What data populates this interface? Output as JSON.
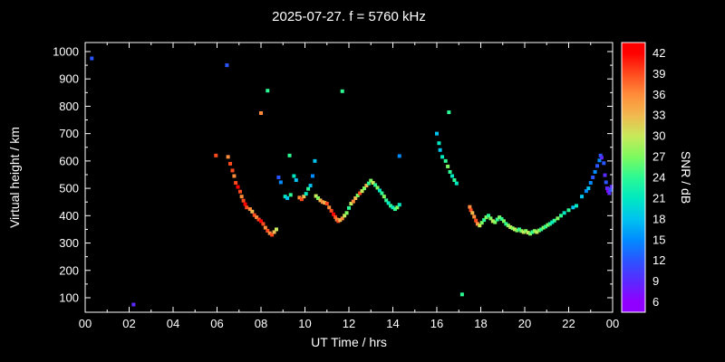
{
  "chart_data": {
    "type": "scatter",
    "title": "2025-07-27. f = 5760 kHz",
    "xlabel": "UT Time / hrs",
    "ylabel": "Virtual height / km",
    "colorbar_label": "SNR / dB",
    "x_range": [
      0,
      24
    ],
    "y_range": [
      47,
      1033
    ],
    "x_tick_values": [
      0,
      2,
      4,
      6,
      8,
      10,
      12,
      14,
      16,
      18,
      20,
      22,
      24
    ],
    "x_tick_labels": [
      "00",
      "02",
      "04",
      "06",
      "08",
      "10",
      "12",
      "14",
      "16",
      "18",
      "20",
      "22",
      "00"
    ],
    "y_tick_values": [
      100,
      200,
      300,
      400,
      500,
      600,
      700,
      800,
      900,
      1000
    ],
    "y_tick_labels": [
      "100",
      "200",
      "300",
      "400",
      "500",
      "600",
      "700",
      "800",
      "900",
      "1000"
    ],
    "grid": false,
    "colorbar": {
      "range": [
        4.5,
        43.5
      ],
      "tick_values": [
        6,
        9,
        12,
        15,
        18,
        21,
        24,
        27,
        30,
        33,
        36,
        39,
        42
      ],
      "tick_labels": [
        "6",
        "9",
        "12",
        "15",
        "18",
        "21",
        "24",
        "27",
        "30",
        "33",
        "36",
        "39",
        "42"
      ],
      "stops": [
        {
          "v": 6,
          "c": "#9000ff"
        },
        {
          "v": 9,
          "c": "#5a2aff"
        },
        {
          "v": 12,
          "c": "#2a55ff"
        },
        {
          "v": 15,
          "c": "#008cff"
        },
        {
          "v": 18,
          "c": "#00c3ef"
        },
        {
          "v": 21,
          "c": "#00e8c0"
        },
        {
          "v": 24,
          "c": "#2cf993"
        },
        {
          "v": 27,
          "c": "#7dfa5e"
        },
        {
          "v": 30,
          "c": "#c8e95a"
        },
        {
          "v": 33,
          "c": "#f2b84e"
        },
        {
          "v": 36,
          "c": "#ff8c3a"
        },
        {
          "v": 39,
          "c": "#ff4a1e"
        },
        {
          "v": 42,
          "c": "#ff0000"
        }
      ]
    },
    "points": [
      [
        0.3,
        975,
        12
      ],
      [
        2.2,
        75,
        9
      ],
      [
        5.95,
        620,
        39
      ],
      [
        6.45,
        950,
        12
      ],
      [
        6.5,
        615,
        36
      ],
      [
        6.6,
        590,
        39
      ],
      [
        6.7,
        565,
        39
      ],
      [
        6.78,
        545,
        36
      ],
      [
        6.85,
        520,
        39
      ],
      [
        6.95,
        505,
        42
      ],
      [
        7.05,
        488,
        39
      ],
      [
        7.12,
        470,
        36
      ],
      [
        7.2,
        455,
        39
      ],
      [
        7.28,
        442,
        42
      ],
      [
        7.35,
        430,
        39
      ],
      [
        7.5,
        424,
        36
      ],
      [
        7.6,
        415,
        33
      ],
      [
        7.7,
        402,
        39
      ],
      [
        7.8,
        394,
        36
      ],
      [
        7.9,
        386,
        39
      ],
      [
        8.0,
        380,
        42
      ],
      [
        8.0,
        775,
        36
      ],
      [
        8.1,
        370,
        39
      ],
      [
        8.2,
        356,
        36
      ],
      [
        8.3,
        345,
        39
      ],
      [
        8.3,
        857,
        24
      ],
      [
        8.4,
        336,
        36
      ],
      [
        8.5,
        330,
        39
      ],
      [
        8.6,
        340,
        33
      ],
      [
        8.7,
        350,
        30
      ],
      [
        8.8,
        540,
        12
      ],
      [
        8.9,
        522,
        15
      ],
      [
        9.1,
        470,
        21
      ],
      [
        9.2,
        464,
        18
      ],
      [
        9.3,
        620,
        24
      ],
      [
        9.35,
        476,
        24
      ],
      [
        9.5,
        545,
        21
      ],
      [
        9.6,
        530,
        18
      ],
      [
        9.75,
        466,
        36
      ],
      [
        9.85,
        460,
        39
      ],
      [
        9.95,
        470,
        33
      ],
      [
        10.05,
        480,
        21
      ],
      [
        10.15,
        498,
        24
      ],
      [
        10.25,
        510,
        18
      ],
      [
        10.35,
        545,
        15
      ],
      [
        10.45,
        600,
        18
      ],
      [
        10.5,
        472,
        30
      ],
      [
        10.6,
        464,
        27
      ],
      [
        10.7,
        456,
        33
      ],
      [
        10.8,
        450,
        36
      ],
      [
        10.9,
        447,
        33
      ],
      [
        11.0,
        444,
        39
      ],
      [
        11.1,
        430,
        36
      ],
      [
        11.2,
        418,
        39
      ],
      [
        11.3,
        405,
        42
      ],
      [
        11.38,
        395,
        39
      ],
      [
        11.45,
        386,
        36
      ],
      [
        11.52,
        380,
        39
      ],
      [
        11.6,
        384,
        33
      ],
      [
        11.7,
        390,
        36
      ],
      [
        11.7,
        855,
        24
      ],
      [
        11.8,
        400,
        30
      ],
      [
        11.9,
        410,
        27
      ],
      [
        12.0,
        428,
        24
      ],
      [
        12.1,
        444,
        30
      ],
      [
        12.2,
        452,
        36
      ],
      [
        12.3,
        464,
        33
      ],
      [
        12.4,
        474,
        27
      ],
      [
        12.5,
        482,
        39
      ],
      [
        12.6,
        490,
        30
      ],
      [
        12.7,
        500,
        27
      ],
      [
        12.8,
        510,
        33
      ],
      [
        12.9,
        518,
        24
      ],
      [
        13.0,
        528,
        27
      ],
      [
        13.1,
        520,
        30
      ],
      [
        13.2,
        512,
        24
      ],
      [
        13.3,
        502,
        27
      ],
      [
        13.4,
        492,
        21
      ],
      [
        13.5,
        482,
        24
      ],
      [
        13.6,
        470,
        27
      ],
      [
        13.7,
        456,
        24
      ],
      [
        13.8,
        446,
        21
      ],
      [
        13.9,
        436,
        24
      ],
      [
        14.0,
        430,
        21
      ],
      [
        14.1,
        424,
        24
      ],
      [
        14.2,
        430,
        27
      ],
      [
        14.3,
        440,
        21
      ],
      [
        14.3,
        618,
        15
      ],
      [
        16.0,
        700,
        18
      ],
      [
        16.1,
        665,
        21
      ],
      [
        16.15,
        640,
        18
      ],
      [
        16.25,
        615,
        21
      ],
      [
        16.4,
        600,
        24
      ],
      [
        16.5,
        580,
        27
      ],
      [
        16.55,
        778,
        24
      ],
      [
        16.6,
        560,
        24
      ],
      [
        16.7,
        545,
        21
      ],
      [
        16.8,
        530,
        24
      ],
      [
        16.9,
        518,
        21
      ],
      [
        17.15,
        112,
        24
      ],
      [
        17.5,
        432,
        36
      ],
      [
        17.55,
        420,
        39
      ],
      [
        17.62,
        410,
        33
      ],
      [
        17.7,
        396,
        36
      ],
      [
        17.78,
        382,
        39
      ],
      [
        17.85,
        370,
        36
      ],
      [
        17.95,
        364,
        30
      ],
      [
        18.05,
        374,
        27
      ],
      [
        18.15,
        384,
        24
      ],
      [
        18.25,
        394,
        27
      ],
      [
        18.35,
        400,
        24
      ],
      [
        18.45,
        390,
        27
      ],
      [
        18.55,
        380,
        30
      ],
      [
        18.65,
        376,
        27
      ],
      [
        18.75,
        386,
        24
      ],
      [
        18.85,
        394,
        27
      ],
      [
        18.95,
        388,
        24
      ],
      [
        19.05,
        380,
        27
      ],
      [
        19.15,
        370,
        24
      ],
      [
        19.25,
        364,
        27
      ],
      [
        19.35,
        358,
        30
      ],
      [
        19.45,
        354,
        27
      ],
      [
        19.55,
        350,
        30
      ],
      [
        19.65,
        346,
        27
      ],
      [
        19.75,
        350,
        24
      ],
      [
        19.85,
        344,
        27
      ],
      [
        19.95,
        340,
        30
      ],
      [
        20.05,
        344,
        27
      ],
      [
        20.15,
        338,
        30
      ],
      [
        20.25,
        334,
        27
      ],
      [
        20.35,
        340,
        24
      ],
      [
        20.45,
        344,
        27
      ],
      [
        20.55,
        340,
        30
      ],
      [
        20.65,
        346,
        27
      ],
      [
        20.75,
        350,
        24
      ],
      [
        20.85,
        356,
        27
      ],
      [
        20.95,
        360,
        24
      ],
      [
        21.05,
        366,
        27
      ],
      [
        21.15,
        370,
        24
      ],
      [
        21.25,
        376,
        21
      ],
      [
        21.35,
        382,
        24
      ],
      [
        21.5,
        390,
        27
      ],
      [
        21.65,
        400,
        24
      ],
      [
        21.8,
        410,
        21
      ],
      [
        22.0,
        420,
        24
      ],
      [
        22.2,
        430,
        18
      ],
      [
        22.35,
        436,
        21
      ],
      [
        22.6,
        470,
        18
      ],
      [
        22.8,
        490,
        15
      ],
      [
        22.9,
        500,
        18
      ],
      [
        23.0,
        520,
        15
      ],
      [
        23.1,
        540,
        12
      ],
      [
        23.2,
        560,
        15
      ],
      [
        23.3,
        582,
        12
      ],
      [
        23.4,
        602,
        15
      ],
      [
        23.45,
        620,
        12
      ],
      [
        23.5,
        612,
        9
      ],
      [
        23.6,
        592,
        12
      ],
      [
        23.65,
        548,
        9
      ],
      [
        23.7,
        522,
        12
      ],
      [
        23.75,
        500,
        9
      ],
      [
        23.8,
        490,
        6
      ],
      [
        23.85,
        482,
        9
      ],
      [
        23.9,
        494,
        12
      ],
      [
        23.95,
        506,
        9
      ]
    ]
  }
}
